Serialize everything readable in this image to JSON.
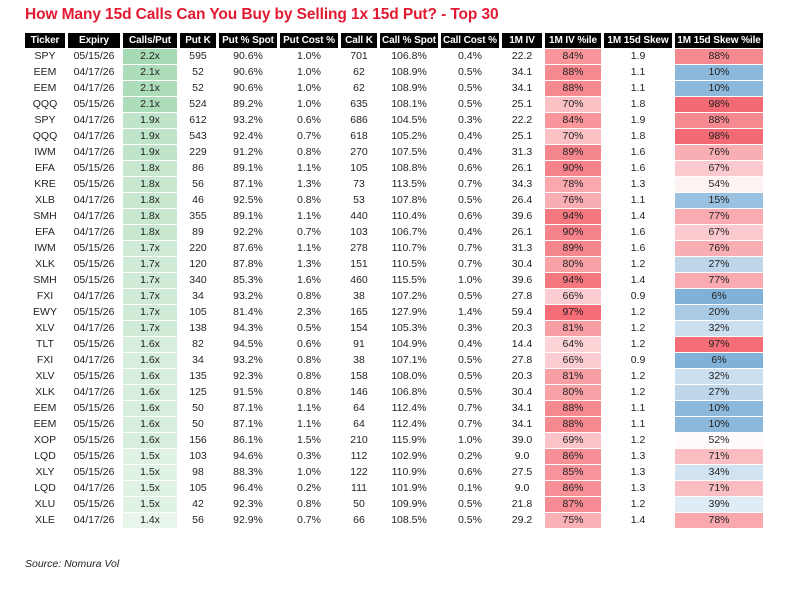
{
  "title": {
    "text": "How Many 15d Calls Can You Buy by Selling 1x 15d Put? - Top 30",
    "color": "#E11931"
  },
  "source_note": "Source: Nomura Vol",
  "chart_data": {
    "type": "table",
    "title": "How Many 15d Calls Can You Buy by Selling 1x 15d Put? - Top 30",
    "columns": [
      "Ticker",
      "Expiry",
      "Calls/Put",
      "Put K",
      "Put % Spot",
      "Put Cost %",
      "Call K",
      "Call % Spot",
      "Call Cost %",
      "1M IV",
      "1M IV %ile",
      "1M 15d Skew",
      "1M 15d Skew %ile"
    ],
    "column_keys": [
      "ticker",
      "expiry",
      "calls-per-put",
      "put-k",
      "put-pct-spot",
      "put-cost-pct",
      "call-k",
      "call-pct-spot",
      "call-cost-pct",
      "1m-iv",
      "1m-iv-percentile",
      "1m-15d-skew",
      "1m-15d-skew-percentile"
    ],
    "rows": [
      [
        "SPY",
        "05/15/26",
        "2.2x",
        "595",
        "90.6%",
        "1.0%",
        "701",
        "106.8%",
        "0.4%",
        "22.2",
        "84%",
        "1.9",
        "88%"
      ],
      [
        "EEM",
        "04/17/26",
        "2.1x",
        "52",
        "90.6%",
        "1.0%",
        "62",
        "108.9%",
        "0.5%",
        "34.1",
        "88%",
        "1.1",
        "10%"
      ],
      [
        "EEM",
        "04/17/26",
        "2.1x",
        "52",
        "90.6%",
        "1.0%",
        "62",
        "108.9%",
        "0.5%",
        "34.1",
        "88%",
        "1.1",
        "10%"
      ],
      [
        "QQQ",
        "05/15/26",
        "2.1x",
        "524",
        "89.2%",
        "1.0%",
        "635",
        "108.1%",
        "0.5%",
        "25.1",
        "70%",
        "1.8",
        "98%"
      ],
      [
        "SPY",
        "04/17/26",
        "1.9x",
        "612",
        "93.2%",
        "0.6%",
        "686",
        "104.5%",
        "0.3%",
        "22.2",
        "84%",
        "1.9",
        "88%"
      ],
      [
        "QQQ",
        "04/17/26",
        "1.9x",
        "543",
        "92.4%",
        "0.7%",
        "618",
        "105.2%",
        "0.4%",
        "25.1",
        "70%",
        "1.8",
        "98%"
      ],
      [
        "IWM",
        "04/17/26",
        "1.9x",
        "229",
        "91.2%",
        "0.8%",
        "270",
        "107.5%",
        "0.4%",
        "31.3",
        "89%",
        "1.6",
        "76%"
      ],
      [
        "EFA",
        "05/15/26",
        "1.8x",
        "86",
        "89.1%",
        "1.1%",
        "105",
        "108.8%",
        "0.6%",
        "26.1",
        "90%",
        "1.6",
        "67%"
      ],
      [
        "KRE",
        "05/15/26",
        "1.8x",
        "56",
        "87.1%",
        "1.3%",
        "73",
        "113.5%",
        "0.7%",
        "34.3",
        "78%",
        "1.3",
        "54%"
      ],
      [
        "XLB",
        "04/17/26",
        "1.8x",
        "46",
        "92.5%",
        "0.8%",
        "53",
        "107.8%",
        "0.5%",
        "26.4",
        "76%",
        "1.1",
        "15%"
      ],
      [
        "SMH",
        "04/17/26",
        "1.8x",
        "355",
        "89.1%",
        "1.1%",
        "440",
        "110.4%",
        "0.6%",
        "39.6",
        "94%",
        "1.4",
        "77%"
      ],
      [
        "EFA",
        "04/17/26",
        "1.8x",
        "89",
        "92.2%",
        "0.7%",
        "103",
        "106.7%",
        "0.4%",
        "26.1",
        "90%",
        "1.6",
        "67%"
      ],
      [
        "IWM",
        "05/15/26",
        "1.7x",
        "220",
        "87.6%",
        "1.1%",
        "278",
        "110.7%",
        "0.7%",
        "31.3",
        "89%",
        "1.6",
        "76%"
      ],
      [
        "XLK",
        "05/15/26",
        "1.7x",
        "120",
        "87.8%",
        "1.3%",
        "151",
        "110.5%",
        "0.7%",
        "30.4",
        "80%",
        "1.2",
        "27%"
      ],
      [
        "SMH",
        "05/15/26",
        "1.7x",
        "340",
        "85.3%",
        "1.6%",
        "460",
        "115.5%",
        "1.0%",
        "39.6",
        "94%",
        "1.4",
        "77%"
      ],
      [
        "FXI",
        "04/17/26",
        "1.7x",
        "34",
        "93.2%",
        "0.8%",
        "38",
        "107.2%",
        "0.5%",
        "27.8",
        "66%",
        "0.9",
        "6%"
      ],
      [
        "EWY",
        "05/15/26",
        "1.7x",
        "105",
        "81.4%",
        "2.3%",
        "165",
        "127.9%",
        "1.4%",
        "59.4",
        "97%",
        "1.2",
        "20%"
      ],
      [
        "XLV",
        "04/17/26",
        "1.7x",
        "138",
        "94.3%",
        "0.5%",
        "154",
        "105.3%",
        "0.3%",
        "20.3",
        "81%",
        "1.2",
        "32%"
      ],
      [
        "TLT",
        "05/15/26",
        "1.6x",
        "82",
        "94.5%",
        "0.6%",
        "91",
        "104.9%",
        "0.4%",
        "14.4",
        "64%",
        "1.2",
        "97%"
      ],
      [
        "FXI",
        "04/17/26",
        "1.6x",
        "34",
        "93.2%",
        "0.8%",
        "38",
        "107.1%",
        "0.5%",
        "27.8",
        "66%",
        "0.9",
        "6%"
      ],
      [
        "XLV",
        "05/15/26",
        "1.6x",
        "135",
        "92.3%",
        "0.8%",
        "158",
        "108.0%",
        "0.5%",
        "20.3",
        "81%",
        "1.2",
        "32%"
      ],
      [
        "XLK",
        "04/17/26",
        "1.6x",
        "125",
        "91.5%",
        "0.8%",
        "146",
        "106.8%",
        "0.5%",
        "30.4",
        "80%",
        "1.2",
        "27%"
      ],
      [
        "EEM",
        "05/15/26",
        "1.6x",
        "50",
        "87.1%",
        "1.1%",
        "64",
        "112.4%",
        "0.7%",
        "34.1",
        "88%",
        "1.1",
        "10%"
      ],
      [
        "EEM",
        "05/15/26",
        "1.6x",
        "50",
        "87.1%",
        "1.1%",
        "64",
        "112.4%",
        "0.7%",
        "34.1",
        "88%",
        "1.1",
        "10%"
      ],
      [
        "XOP",
        "05/15/26",
        "1.6x",
        "156",
        "86.1%",
        "1.5%",
        "210",
        "115.9%",
        "1.0%",
        "39.0",
        "69%",
        "1.2",
        "52%"
      ],
      [
        "LQD",
        "05/15/26",
        "1.5x",
        "103",
        "94.6%",
        "0.3%",
        "112",
        "102.9%",
        "0.2%",
        "9.0",
        "86%",
        "1.3",
        "71%"
      ],
      [
        "XLY",
        "05/15/26",
        "1.5x",
        "98",
        "88.3%",
        "1.0%",
        "122",
        "110.9%",
        "0.6%",
        "27.5",
        "85%",
        "1.3",
        "34%"
      ],
      [
        "LQD",
        "04/17/26",
        "1.5x",
        "105",
        "96.4%",
        "0.2%",
        "111",
        "101.9%",
        "0.1%",
        "9.0",
        "86%",
        "1.3",
        "71%"
      ],
      [
        "XLU",
        "05/15/26",
        "1.5x",
        "42",
        "92.3%",
        "0.8%",
        "50",
        "109.9%",
        "0.5%",
        "21.8",
        "87%",
        "1.2",
        "39%"
      ],
      [
        "XLE",
        "04/17/26",
        "1.4x",
        "56",
        "92.9%",
        "0.7%",
        "66",
        "108.5%",
        "0.5%",
        "29.2",
        "75%",
        "1.4",
        "78%"
      ]
    ],
    "color_scales": {
      "header_bg": "#000000",
      "header_text": "#FFFFFF",
      "green_max": "#63BE7B",
      "red_max": "#F4646E",
      "blue_max": "#6FA6D2",
      "ratio_min": 1.4,
      "ratio_max": 2.2,
      "percentile_midpoint": 50
    },
    "layout": "30 rows, conditional color scales on Calls/Put (green), 1M IV %ile (white-to-red), 1M 15d Skew %ile (blue-white-red diverging)"
  }
}
